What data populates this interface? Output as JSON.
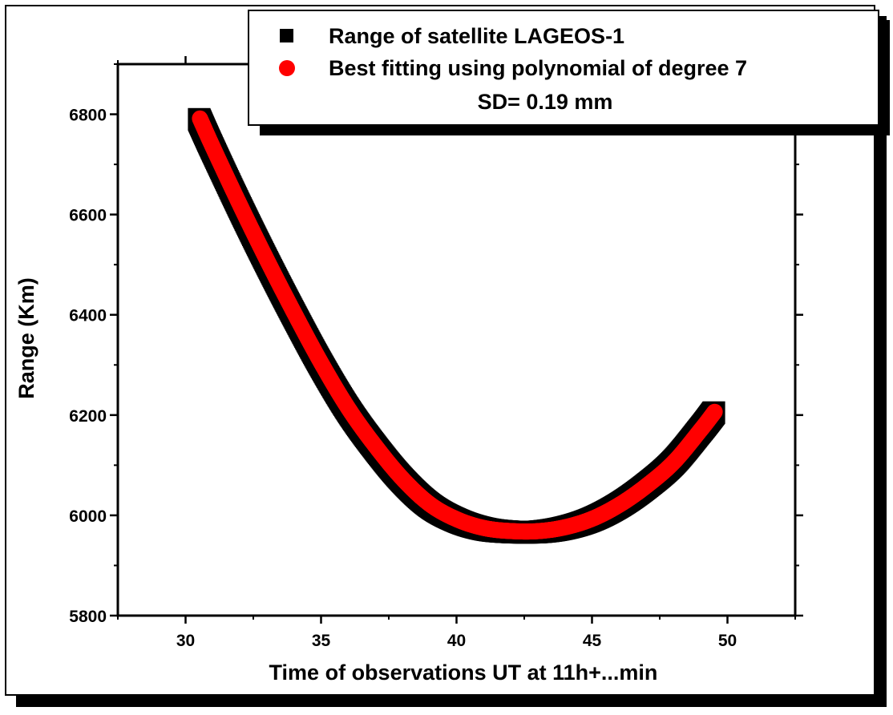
{
  "chart_data": {
    "type": "scatter",
    "xlabel": "Time of observations UT at 11h+...min",
    "ylabel": "Range (Km)",
    "xlim": [
      27.5,
      52.5
    ],
    "ylim": [
      5800,
      6900
    ],
    "x_ticks": [
      "30",
      "35",
      "40",
      "45",
      "50"
    ],
    "y_ticks": [
      "5800",
      "6000",
      "6200",
      "6400",
      "6600",
      "6800"
    ],
    "grid": false,
    "legend_position": "top-right",
    "legend_note": "SD= 0.19 mm",
    "series": [
      {
        "name": "Range of satellite LAGEOS-1",
        "marker": "square",
        "color": "#000000",
        "x": [
          30.5,
          31.0,
          32.0,
          33.0,
          34.0,
          35.0,
          36.0,
          37.0,
          38.0,
          39.0,
          40.0,
          41.0,
          42.0,
          43.0,
          44.0,
          45.0,
          46.0,
          47.0,
          48.0,
          49.0,
          49.5
        ],
        "y": [
          6790,
          6730,
          6615,
          6505,
          6400,
          6300,
          6210,
          6135,
          6070,
          6020,
          5990,
          5973,
          5967,
          5967,
          5975,
          5992,
          6020,
          6058,
          6105,
          6170,
          6205
        ]
      },
      {
        "name": "Best fitting using polynomial of degree 7",
        "marker": "circle",
        "color": "#ff0000",
        "x": [
          30.5,
          31.0,
          32.0,
          33.0,
          34.0,
          35.0,
          36.0,
          37.0,
          38.0,
          39.0,
          40.0,
          41.0,
          42.0,
          43.0,
          44.0,
          45.0,
          46.0,
          47.0,
          48.0,
          49.0,
          49.5
        ],
        "y": [
          6790,
          6730,
          6615,
          6505,
          6400,
          6300,
          6210,
          6135,
          6070,
          6020,
          5990,
          5973,
          5967,
          5967,
          5975,
          5992,
          6020,
          6058,
          6105,
          6170,
          6205
        ]
      }
    ]
  }
}
